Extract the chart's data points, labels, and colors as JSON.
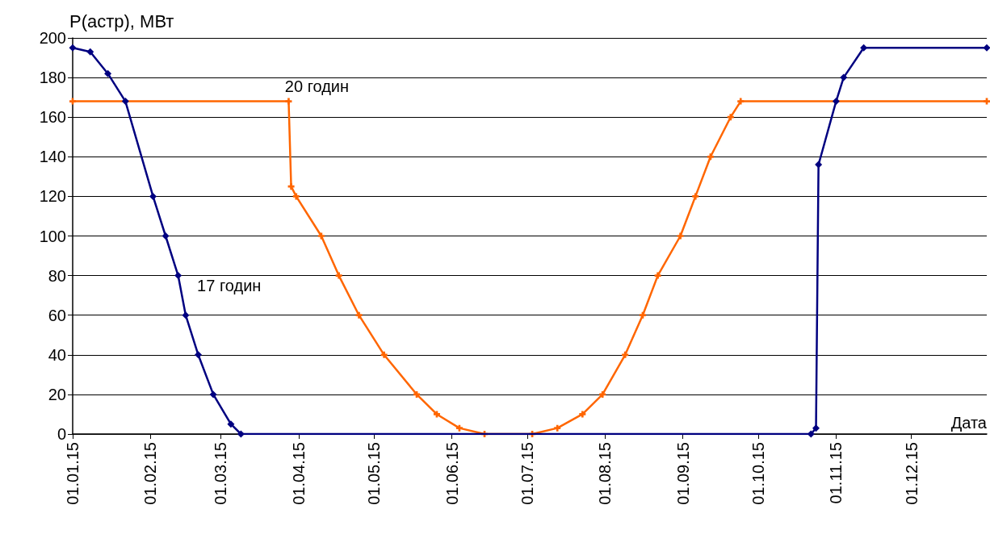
{
  "chart_data": {
    "type": "line",
    "xlabel": "Дата",
    "ylabel": "P(астр), МВт",
    "xlim": [
      "2015-01-01",
      "2015-12-31"
    ],
    "xticks": [
      {
        "value": "2015-01-01",
        "label": "01.01.15"
      },
      {
        "value": "2015-02-01",
        "label": "01.02.15"
      },
      {
        "value": "2015-03-01",
        "label": "01.03.15"
      },
      {
        "value": "2015-04-01",
        "label": "01.04.15"
      },
      {
        "value": "2015-05-01",
        "label": "01.05.15"
      },
      {
        "value": "2015-06-01",
        "label": "01.06.15"
      },
      {
        "value": "2015-07-01",
        "label": "01.07.15"
      },
      {
        "value": "2015-08-01",
        "label": "01.08.15"
      },
      {
        "value": "2015-09-01",
        "label": "01.09.15"
      },
      {
        "value": "2015-10-01",
        "label": "01.10.15"
      },
      {
        "value": "2015-11-01",
        "label": "01.11.15"
      },
      {
        "value": "2015-12-01",
        "label": "01.12.15"
      }
    ],
    "ylim": [
      0,
      200
    ],
    "yticks": [
      0,
      20,
      40,
      60,
      80,
      100,
      120,
      140,
      160,
      180,
      200
    ],
    "grid": "y",
    "legend": false,
    "line_style": "solid",
    "series": [
      {
        "name": "17 годин",
        "color": "#000080",
        "marker": "diamond",
        "x": [
          "2015-01-01",
          "2015-01-08",
          "2015-01-15",
          "2015-01-22",
          "2015-02-02",
          "2015-02-07",
          "2015-02-12",
          "2015-02-15",
          "2015-02-20",
          "2015-02-26",
          "2015-03-05",
          "2015-03-09",
          "2015-10-22",
          "2015-10-24",
          "2015-10-25",
          "2015-11-01",
          "2015-11-04",
          "2015-11-12",
          "2015-12-31"
        ],
        "values": [
          195,
          193,
          182,
          168,
          120,
          100,
          80,
          60,
          40,
          20,
          5,
          0,
          0,
          3,
          136,
          168,
          180,
          195,
          195
        ]
      },
      {
        "name": "20 годин",
        "color": "#ff6600",
        "marker": "cross",
        "x": [
          "2015-01-01",
          "2015-03-28",
          "2015-03-29",
          "2015-03-31",
          "2015-04-10",
          "2015-04-17",
          "2015-04-25",
          "2015-05-05",
          "2015-05-18",
          "2015-05-26",
          "2015-06-04",
          "2015-06-14",
          "2015-07-03",
          "2015-07-13",
          "2015-07-23",
          "2015-07-31",
          "2015-08-09",
          "2015-08-16",
          "2015-08-22",
          "2015-08-31",
          "2015-09-06",
          "2015-09-12",
          "2015-09-20",
          "2015-09-24",
          "2015-12-31"
        ],
        "values": [
          168,
          168,
          125,
          120,
          100,
          80,
          60,
          40,
          20,
          10,
          3,
          0,
          0,
          3,
          10,
          20,
          40,
          60,
          80,
          100,
          120,
          140,
          160,
          168,
          168
        ]
      }
    ]
  }
}
